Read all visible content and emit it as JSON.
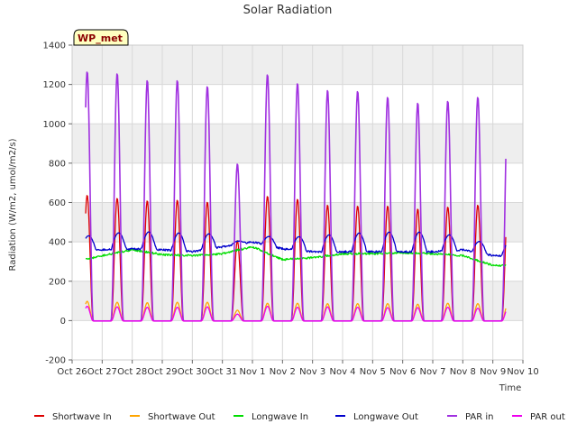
{
  "chart_data": {
    "type": "line",
    "title": "Solar Radiation",
    "xlabel": "Time",
    "ylabel": "Radiation (W/m2, umol/m2/s)",
    "tag_label": "WP_met",
    "ylim": [
      -200,
      1400
    ],
    "yticks": [
      -200,
      0,
      200,
      400,
      600,
      800,
      1000,
      1200,
      1400
    ],
    "xlim": [
      0,
      15
    ],
    "xtick_labels": [
      "Oct 26",
      "Oct 27",
      "Oct 28",
      "Oct 29",
      "Oct 30",
      "Oct 31",
      "Nov 1",
      "Nov 2",
      "Nov 3",
      "Nov 4",
      "Nov 5",
      "Nov 6",
      "Nov 7",
      "Nov 8",
      "Nov 9",
      "Nov 10"
    ],
    "grid": true,
    "legend_position": "bottom",
    "days": [
      "Oct 26",
      "Oct 27",
      "Oct 28",
      "Oct 29",
      "Oct 30",
      "Oct 31",
      "Nov 1",
      "Nov 2",
      "Nov 3",
      "Nov 4",
      "Nov 5",
      "Nov 6",
      "Nov 7",
      "Nov 8",
      "Nov 9"
    ],
    "series": [
      {
        "name": "Shortwave In",
        "color": "#dd0000",
        "kind": "day_peak",
        "daily_peak": [
          640,
          625,
          612,
          615,
          605,
          410,
          635,
          620,
          590,
          585,
          585,
          570,
          580,
          590
        ]
      },
      {
        "name": "Shortwave Out",
        "color": "#ffa500",
        "kind": "day_peak",
        "daily_peak": [
          100,
          95,
          93,
          95,
          95,
          55,
          90,
          90,
          88,
          88,
          88,
          85,
          90,
          88
        ]
      },
      {
        "name": "Longwave In",
        "color": "#00dd00",
        "kind": "continuous",
        "daily_level": [
          295,
          330,
          360,
          335,
          330,
          340,
          375,
          310,
          320,
          340,
          340,
          345,
          340,
          330,
          280
        ]
      },
      {
        "name": "Longwave Out",
        "color": "#0000cc",
        "kind": "continuous",
        "daily_level": [
          350,
          360,
          365,
          360,
          350,
          375,
          400,
          365,
          350,
          350,
          350,
          350,
          350,
          360,
          330
        ],
        "daily_peak": [
          435,
          450,
          455,
          450,
          445,
          405,
          430,
          430,
          440,
          450,
          455,
          455,
          440,
          405
        ]
      },
      {
        "name": "PAR in",
        "color": "#a030e0",
        "kind": "day_peak",
        "daily_peak": [
          1270,
          1260,
          1225,
          1225,
          1195,
          800,
          1255,
          1210,
          1175,
          1170,
          1140,
          1110,
          1120,
          1140
        ]
      },
      {
        "name": "PAR out",
        "color": "#ee00ee",
        "kind": "day_peak",
        "daily_peak": [
          75,
          72,
          70,
          70,
          72,
          35,
          75,
          70,
          72,
          70,
          68,
          68,
          70,
          65
        ]
      }
    ]
  }
}
